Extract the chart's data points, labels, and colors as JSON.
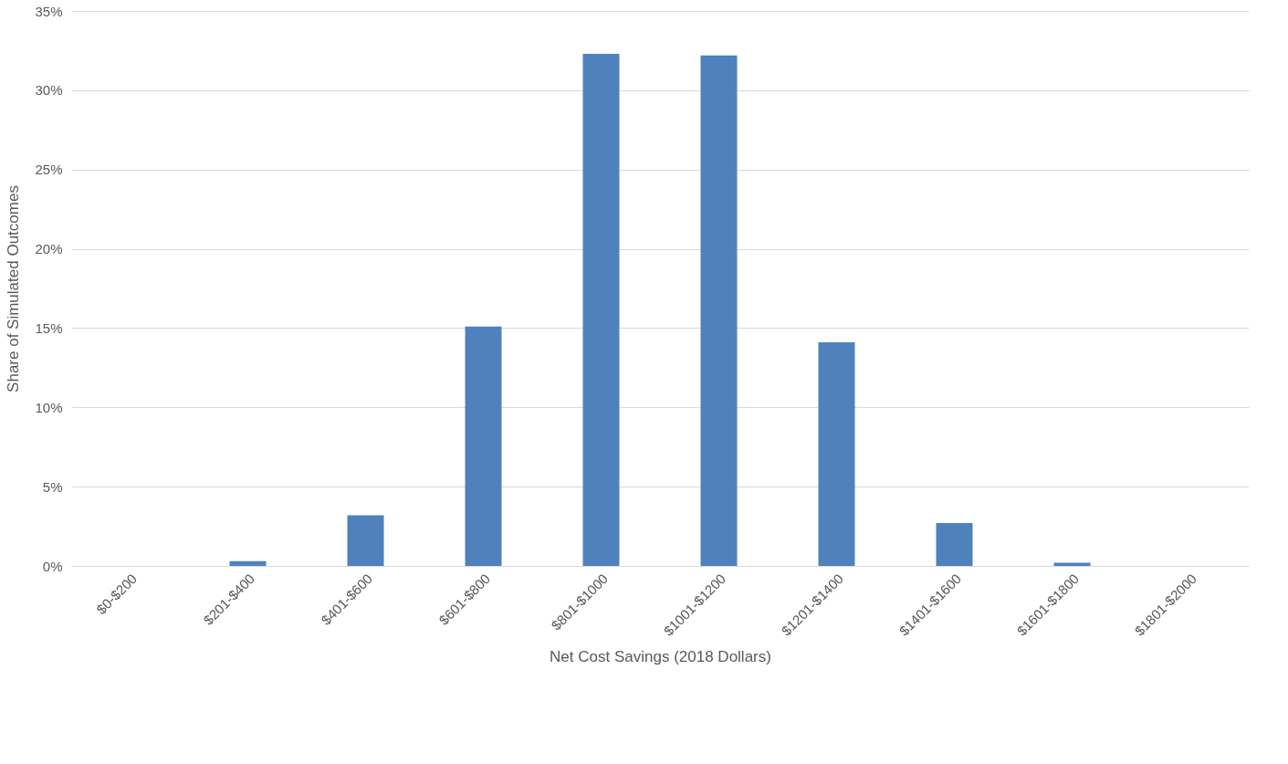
{
  "chart_data": {
    "type": "bar",
    "xlabel": "Net Cost Savings (2018 Dollars)",
    "ylabel": "Share of Simulated Outcomes",
    "categories": [
      "$0-$200",
      "$201-$400",
      "$401-$600",
      "$601-$800",
      "$801-$1000",
      "$1001-$1200",
      "$1201-$1400",
      "$1401-$1600",
      "$1601-$1800",
      "$1801-$2000"
    ],
    "values": [
      0,
      0.3,
      3.2,
      15.1,
      32.3,
      32.2,
      14.1,
      2.7,
      0.2,
      0
    ],
    "color": "#4f81bd",
    "ylim": [
      0,
      35
    ],
    "yticks": [
      {
        "value": 0,
        "label": "0%"
      },
      {
        "value": 5,
        "label": "5%"
      },
      {
        "value": 10,
        "label": "10%"
      },
      {
        "value": 15,
        "label": "15%"
      },
      {
        "value": 20,
        "label": "20%"
      },
      {
        "value": 25,
        "label": "25%"
      },
      {
        "value": 30,
        "label": "30%"
      },
      {
        "value": 35,
        "label": "35%"
      }
    ],
    "grid": "y"
  }
}
